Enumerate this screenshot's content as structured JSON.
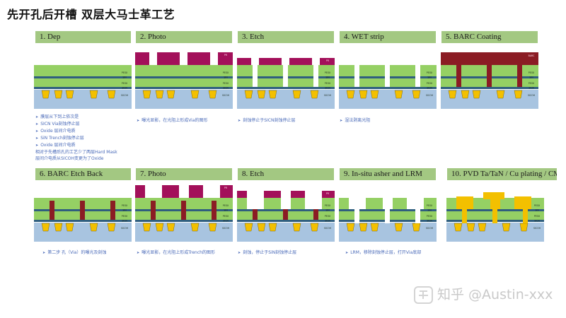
{
  "title": "先开孔后开槽 双层大马士革工艺",
  "steps": [
    {
      "label": "1. Dep"
    },
    {
      "label": "2. Photo"
    },
    {
      "label": "3. Etch"
    },
    {
      "label": "4. WET strip"
    },
    {
      "label": "5. BARC Coating"
    },
    {
      "label": "6. BARC Etch Back"
    },
    {
      "label": "7. Photo"
    },
    {
      "label": "8. Etch"
    },
    {
      "label": "9. In-situ asher and LRM"
    },
    {
      "label": "10. PVD Ta/TaN / Cu plating / CMP"
    }
  ],
  "notes": {
    "step1": [
      "膜层从下到上依次是",
      "SICN Via刻蚀停止层",
      "Oxide 层间介电质",
      "SiN Trench刻蚀停止层",
      "Oxide 层间介电质"
    ],
    "step1_extra": [
      "相对于先槽后孔的工艺少了两层Hard Mask",
      "层间介电质从SICOH变更为了Oxide"
    ],
    "step2": "曝光显影，在光阻上形成Via的图形",
    "step3": "刻蚀停止于SICN刻蚀停止层",
    "step4": "湿法剥离光阻",
    "step6": "第二步 孔（Via）的曝光及刻蚀",
    "step7": "曝光显影，在光阻上形成Trench的图形",
    "step8": "刻蚀，停止于SiN刻蚀停止层",
    "step9": "LRM，移除刻蚀停止层，打开Via底部"
  },
  "layer_labels": {
    "peox": "PEOX",
    "sin": "SIN",
    "sicn": "SICN",
    "sicoh": "SICOH",
    "pr": "PR",
    "barc": "BARC"
  },
  "watermark": "知乎 @Austin-xxx",
  "colors": {
    "header": "#a3c882",
    "oxide": "#95d064",
    "sin": "#2f5f7f",
    "substrate": "#a8c4e0",
    "metal": "#f3c000",
    "photoresist": "#a3105a",
    "barc": "#8b1c24",
    "note_text": "#4a6ab8"
  }
}
